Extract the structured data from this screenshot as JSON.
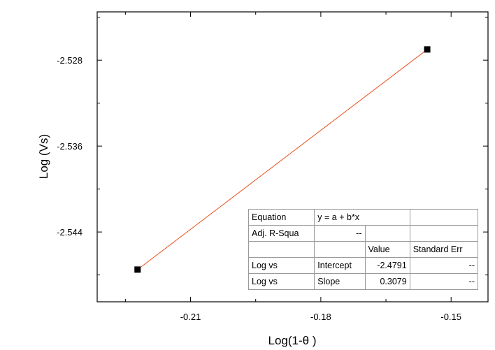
{
  "chart_data": {
    "type": "scatter",
    "xlabel": "Log(1-θ )",
    "ylabel": "Log (Vs)",
    "xlim": [
      -0.2315,
      -0.1415
    ],
    "ylim": [
      -2.5505,
      -2.5235
    ],
    "x_ticks": [
      -0.21,
      -0.18,
      -0.15
    ],
    "x_tick_labels": [
      "-0.21",
      "-0.18",
      "-0.15"
    ],
    "y_ticks": [
      -2.544,
      -2.536,
      -2.528
    ],
    "y_tick_labels": [
      "-2.544",
      "-2.536",
      "-2.528"
    ],
    "series": [
      {
        "x": [
          -0.2222,
          -0.1555
        ],
        "y": [
          -2.5475,
          -2.527
        ]
      }
    ],
    "fit_line": {
      "intercept": -2.4791,
      "slope": 0.3079,
      "color": "#e8501c"
    },
    "grid": false,
    "legend": "none"
  },
  "fit_table": {
    "rows": [
      [
        "Equation",
        "y = a + b*x",
        "",
        ""
      ],
      [
        "Adj. R-Squa",
        "--",
        "",
        ""
      ],
      [
        "",
        "",
        "Value",
        "Standard Err"
      ],
      [
        "Log vs",
        "Intercept",
        "-2.4791",
        "--"
      ],
      [
        "Log vs",
        "Slope",
        "0.3079",
        "--"
      ]
    ]
  }
}
